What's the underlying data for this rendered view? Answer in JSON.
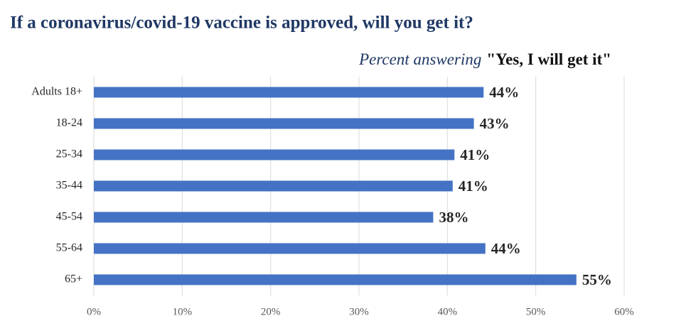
{
  "chart_data": {
    "type": "bar",
    "orientation": "horizontal",
    "title": "If a coronavirus/covid-19 vaccine is approved, will you get it?",
    "subtitle": [
      "Percent answering",
      "\"Yes, I will get it\""
    ],
    "categories": [
      "Adults 18+",
      "18-24",
      "25-34",
      "35-44",
      "45-54",
      "55-64",
      "65+"
    ],
    "values": [
      44.1,
      43.0,
      40.8,
      40.6,
      38.4,
      44.3,
      54.6
    ],
    "value_labels": [
      "44%",
      "43%",
      "41%",
      "41%",
      "38%",
      "44%",
      "55%"
    ],
    "color": "#4472c4",
    "xlim": [
      0,
      60
    ],
    "xticks": [
      {
        "value": 0,
        "label": "0%"
      },
      {
        "value": 10,
        "label": "10%"
      },
      {
        "value": 20,
        "label": "20%"
      },
      {
        "value": 30,
        "label": "30%"
      },
      {
        "value": 40,
        "label": "40%"
      },
      {
        "value": 50,
        "label": "50%"
      },
      {
        "value": 60,
        "label": "60%"
      }
    ],
    "grid": true
  }
}
